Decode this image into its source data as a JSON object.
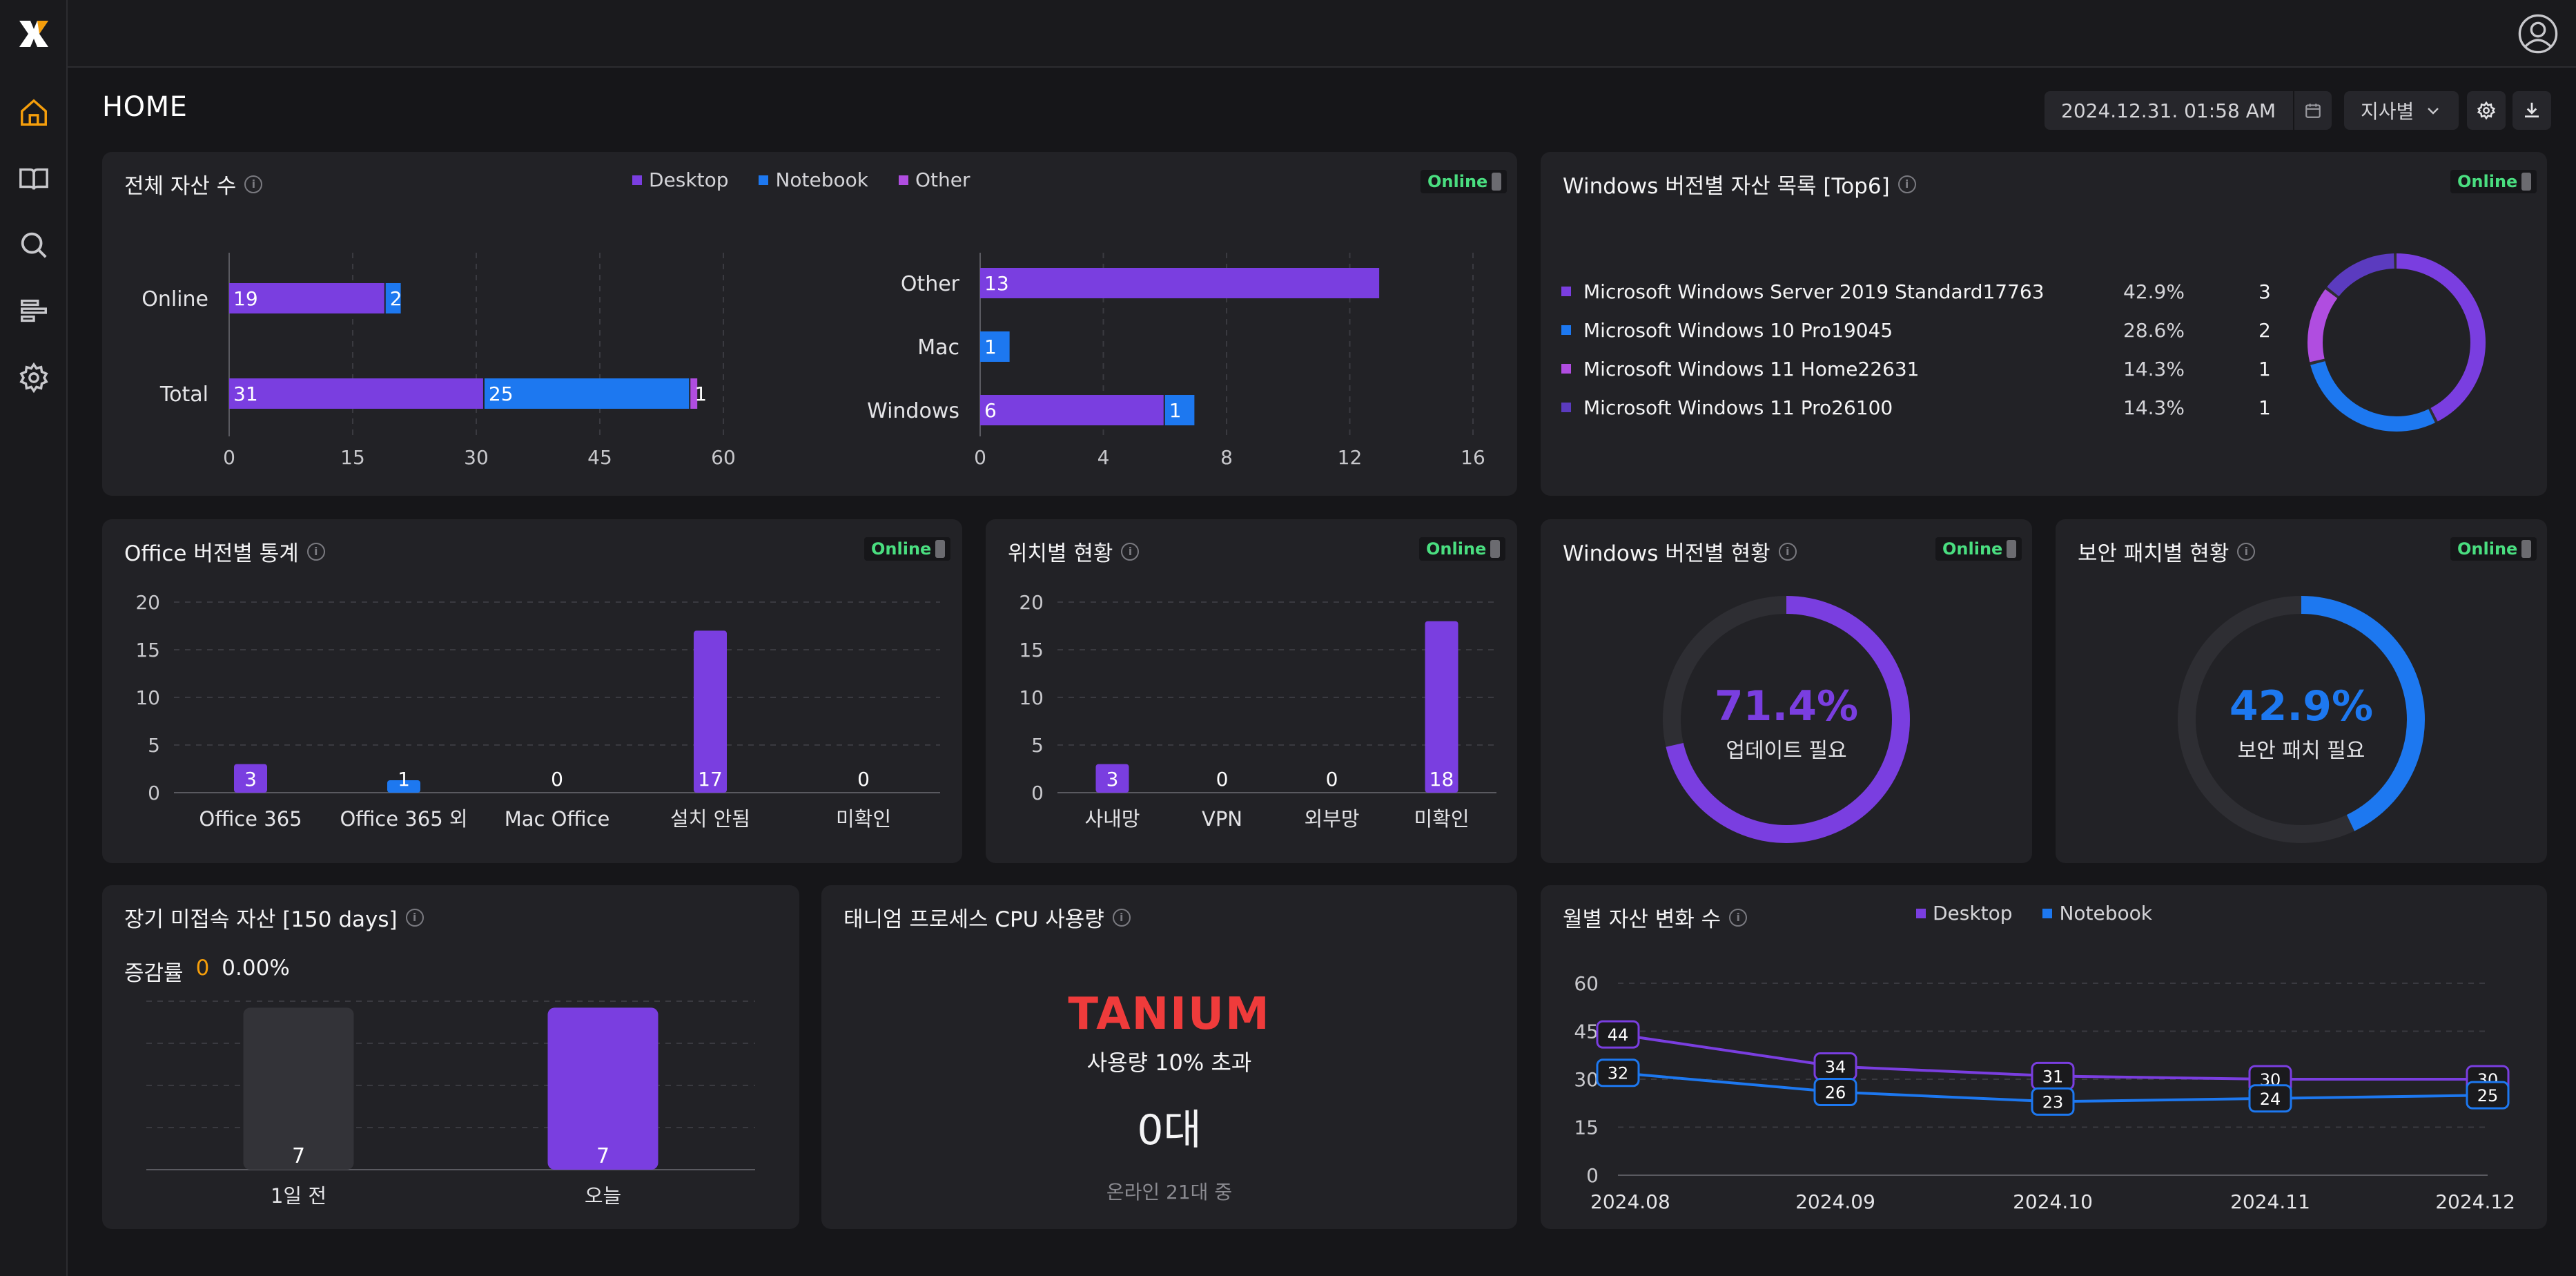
{
  "header": {
    "page_title": "HOME",
    "date": "2024.12.31.  01:58 AM",
    "branch_select": "지사별"
  },
  "colors": {
    "desktop": "#7a3ee0",
    "notebook": "#1d78f0",
    "other": "#b04de0",
    "online_text": "#4ade80",
    "accent_orange": "#f59e0b",
    "tanium_red": "#ef3b3b"
  },
  "panels": {
    "total_assets": {
      "title": "전체 자산 수",
      "badge": "Online",
      "legend": [
        "Desktop",
        "Notebook",
        "Other"
      ],
      "left_chart": {
        "categories": [
          "Online",
          "Total"
        ],
        "series": [
          {
            "name": "Desktop",
            "values": [
              19,
              31
            ]
          },
          {
            "name": "Notebook",
            "values": [
              2,
              25
            ]
          },
          {
            "name": "Other",
            "values": [
              0,
              1
            ]
          }
        ],
        "ticks": [
          "0",
          "15",
          "30",
          "45",
          "60"
        ],
        "xlim": [
          0,
          60
        ]
      },
      "right_chart": {
        "categories": [
          "Other",
          "Mac",
          "Windows"
        ],
        "series": [
          {
            "name": "Desktop",
            "values": [
              13,
              0,
              6
            ]
          },
          {
            "name": "Notebook",
            "values": [
              0,
              1,
              1
            ]
          }
        ],
        "ticks": [
          "0",
          "4",
          "8",
          "12",
          "16"
        ],
        "xlim": [
          0,
          16
        ]
      }
    },
    "windows_top6": {
      "title": "Windows 버전별 자산 목록 [Top6]",
      "badge": "Online",
      "rows": [
        {
          "name": "Microsoft Windows Server 2019 Standard17763",
          "pct": "42.9%",
          "count": "3",
          "value": 3,
          "color": "#7a3ee0"
        },
        {
          "name": "Microsoft Windows 10 Pro19045",
          "pct": "28.6%",
          "count": "2",
          "value": 2,
          "color": "#1d78f0"
        },
        {
          "name": "Microsoft Windows 11 Home22631",
          "pct": "14.3%",
          "count": "1",
          "value": 1,
          "color": "#b04de0"
        },
        {
          "name": "Microsoft Windows 11 Pro26100",
          "pct": "14.3%",
          "count": "1",
          "value": 1,
          "color": "#5b3bbf"
        }
      ]
    },
    "office_stats": {
      "title": "Office 버전별 통계",
      "badge": "Online",
      "categories": [
        "Office 365",
        "Office 365 외",
        "Mac Office",
        "설치 안됨",
        "미확인"
      ],
      "values": [
        3,
        1,
        0,
        17,
        0
      ],
      "labels": [
        "3",
        "1",
        "0",
        "17",
        "0"
      ],
      "bar_colors": [
        "#7a3ee0",
        "#1d78f0",
        "#7a3ee0",
        "#7a3ee0",
        "#7a3ee0"
      ],
      "ticks": [
        "0",
        "5",
        "10",
        "15",
        "20"
      ],
      "ylim": [
        0,
        20
      ]
    },
    "location_stats": {
      "title": "위치별 현황",
      "badge": "Online",
      "categories": [
        "사내망",
        "VPN",
        "외부망",
        "미확인"
      ],
      "values": [
        3,
        0,
        0,
        18
      ],
      "labels": [
        "3",
        "0",
        "0",
        "18"
      ],
      "ticks": [
        "0",
        "5",
        "10",
        "15",
        "20"
      ],
      "ylim": [
        0,
        20
      ]
    },
    "windows_version_status": {
      "title": "Windows 버전별 현황",
      "badge": "Online",
      "percent_value": 71.4,
      "percent_label": "71.4%",
      "caption": "업데이트 필요",
      "color": "#7a3ee0"
    },
    "security_patch_status": {
      "title": "보안 패치별 현황",
      "badge": "Online",
      "percent_value": 42.9,
      "percent_label": "42.9%",
      "caption": "보안 패치 필요",
      "color": "#1d78f0"
    },
    "long_unconnected": {
      "title": "장기 미접속 자산 [150 days]",
      "rate_label": "증감률",
      "rate_count": "0",
      "rate_pct": "0.00%",
      "categories": [
        "1일 전",
        "오늘"
      ],
      "values": [
        7,
        7
      ],
      "labels": [
        "7",
        "7"
      ],
      "bar_colors": [
        "#333338",
        "#7a3ee0"
      ]
    },
    "tanium_cpu": {
      "title": "태니엄 프로세스 CPU 사용량",
      "logo_text": "TANIUM",
      "subtitle": "사용량 10% 초과",
      "count": "0대",
      "note": "온라인 21대 중"
    },
    "monthly_changes": {
      "title": "월별 자산 변화 수",
      "legend": [
        "Desktop",
        "Notebook"
      ]
    }
  },
  "chart_data": [
    {
      "type": "bar",
      "orientation": "horizontal",
      "stacked": true,
      "categories": [
        "Online",
        "Total"
      ],
      "series": [
        {
          "name": "Desktop",
          "values": [
            19,
            31
          ]
        },
        {
          "name": "Notebook",
          "values": [
            2,
            25
          ]
        },
        {
          "name": "Other",
          "values": [
            0,
            1
          ]
        }
      ],
      "xlim": [
        0,
        60
      ]
    },
    {
      "type": "bar",
      "orientation": "horizontal",
      "stacked": true,
      "categories": [
        "Other",
        "Mac",
        "Windows"
      ],
      "series": [
        {
          "name": "Desktop",
          "values": [
            13,
            0,
            6
          ]
        },
        {
          "name": "Notebook",
          "values": [
            0,
            1,
            1
          ]
        }
      ],
      "xlim": [
        0,
        16
      ]
    },
    {
      "type": "pie",
      "categories": [
        "Microsoft Windows Server 2019 Standard17763",
        "Microsoft Windows 10 Pro19045",
        "Microsoft Windows 11 Home22631",
        "Microsoft Windows 11 Pro26100"
      ],
      "values": [
        3,
        2,
        1,
        1
      ]
    },
    {
      "type": "bar",
      "categories": [
        "Office 365",
        "Office 365 외",
        "Mac Office",
        "설치 안됨",
        "미확인"
      ],
      "values": [
        3,
        1,
        0,
        17,
        0
      ],
      "ylim": [
        0,
        20
      ]
    },
    {
      "type": "bar",
      "categories": [
        "사내망",
        "VPN",
        "외부망",
        "미확인"
      ],
      "values": [
        3,
        0,
        0,
        18
      ],
      "ylim": [
        0,
        20
      ]
    },
    {
      "type": "pie",
      "categories": [
        "업데이트 필요"
      ],
      "values": [
        71.4
      ]
    },
    {
      "type": "pie",
      "categories": [
        "보안 패치 필요"
      ],
      "values": [
        42.9
      ]
    },
    {
      "type": "bar",
      "categories": [
        "1일 전",
        "오늘"
      ],
      "values": [
        7,
        7
      ]
    },
    {
      "type": "line",
      "x": [
        "2024.08",
        "2024.09",
        "2024.10",
        "2024.11",
        "2024.12"
      ],
      "series": [
        {
          "name": "Desktop",
          "values": [
            44,
            34,
            31,
            30,
            30
          ]
        },
        {
          "name": "Notebook",
          "values": [
            32,
            26,
            23,
            24,
            25
          ]
        }
      ],
      "ticks": [
        "0",
        "15",
        "30",
        "45",
        "60"
      ],
      "ylim": [
        0,
        60
      ]
    }
  ]
}
